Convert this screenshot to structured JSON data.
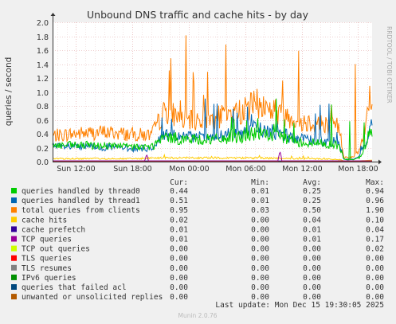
{
  "chart_data": {
    "type": "line",
    "title": "Unbound DNS traffic and cache hits - by day",
    "ylabel": "queries / second",
    "watermark": "RRDTOOL / TOBI OETIKER",
    "ylim": [
      0,
      2.0
    ],
    "yticks": [
      "0.0",
      "0.2",
      "0.4",
      "0.6",
      "0.8",
      "1.0",
      "1.2",
      "1.4",
      "1.6",
      "1.8",
      "2.0"
    ],
    "xticks": [
      "Sun 12:00",
      "Sun 18:00",
      "Mon 00:00",
      "Mon 06:00",
      "Mon 12:00",
      "Mon 18:00"
    ],
    "x_tick_hours": [
      12,
      18,
      24,
      30,
      36,
      42
    ],
    "x_range_hours": [
      9.5,
      43.5
    ],
    "grid": true,
    "legend_position": "bottom",
    "legend_headers": {
      "cur": "Cur:",
      "min": "Min:",
      "avg": "Avg:",
      "max": "Max:"
    },
    "series": [
      {
        "name": "queries handled by thread0",
        "color": "#00cc00",
        "cur": "0.44",
        "min": "0.01",
        "avg": "0.25",
        "max": "0.94",
        "keypoints": [
          [
            9.5,
            0.22
          ],
          [
            12,
            0.22
          ],
          [
            15,
            0.22
          ],
          [
            18,
            0.2
          ],
          [
            20,
            0.2
          ],
          [
            21.5,
            0.33
          ],
          [
            24,
            0.3
          ],
          [
            27,
            0.3
          ],
          [
            30,
            0.35
          ],
          [
            31,
            0.38
          ],
          [
            33,
            0.35
          ],
          [
            36,
            0.26
          ],
          [
            38,
            0.25
          ],
          [
            40,
            0.22
          ],
          [
            40.5,
            0.03
          ],
          [
            41.5,
            0.03
          ],
          [
            42.2,
            0.06
          ],
          [
            42.8,
            0.2
          ],
          [
            43.3,
            0.44
          ],
          [
            43.5,
            0.44
          ]
        ]
      },
      {
        "name": "queries handled by thread1",
        "color": "#0066b3",
        "cur": "0.51",
        "min": "0.01",
        "avg": "0.25",
        "max": "0.96",
        "keypoints": [
          [
            9.5,
            0.2
          ],
          [
            12,
            0.2
          ],
          [
            15,
            0.2
          ],
          [
            18,
            0.18
          ],
          [
            20,
            0.18
          ],
          [
            21.5,
            0.38
          ],
          [
            24,
            0.33
          ],
          [
            27,
            0.33
          ],
          [
            30,
            0.42
          ],
          [
            31,
            0.45
          ],
          [
            33,
            0.4
          ],
          [
            36,
            0.3
          ],
          [
            38,
            0.28
          ],
          [
            40,
            0.26
          ],
          [
            40.5,
            0.03
          ],
          [
            41.5,
            0.03
          ],
          [
            42.2,
            0.08
          ],
          [
            42.8,
            0.25
          ],
          [
            43.3,
            0.51
          ],
          [
            43.5,
            0.51
          ]
        ]
      },
      {
        "name": "total queries from clients",
        "color": "#ff8000",
        "cur": "0.95",
        "min": "0.03",
        "avg": "0.50",
        "max": "1.90",
        "keypoints": [
          [
            9.5,
            0.35
          ],
          [
            12,
            0.38
          ],
          [
            15,
            0.4
          ],
          [
            18,
            0.37
          ],
          [
            20,
            0.36
          ],
          [
            21.5,
            0.7
          ],
          [
            24,
            0.55
          ],
          [
            27,
            0.6
          ],
          [
            30,
            0.7
          ],
          [
            31,
            0.8
          ],
          [
            33,
            0.7
          ],
          [
            36,
            0.55
          ],
          [
            38,
            0.52
          ],
          [
            40,
            0.48
          ],
          [
            40.5,
            0.06
          ],
          [
            41.5,
            0.06
          ],
          [
            42.2,
            0.15
          ],
          [
            42.8,
            0.5
          ],
          [
            43.3,
            0.95
          ],
          [
            43.5,
            0.95
          ]
        ]
      },
      {
        "name": "cache hits",
        "color": "#ffcc00",
        "cur": "0.02",
        "min": "0.00",
        "avg": "0.04",
        "max": "0.10",
        "keypoints": [
          [
            9.5,
            0.04
          ],
          [
            18,
            0.04
          ],
          [
            21.5,
            0.05
          ],
          [
            30,
            0.05
          ],
          [
            36,
            0.04
          ],
          [
            40,
            0.03
          ],
          [
            40.5,
            0.01
          ],
          [
            42,
            0.01
          ],
          [
            43.5,
            0.02
          ]
        ]
      },
      {
        "name": "cache prefetch",
        "color": "#330099",
        "cur": "0.01",
        "min": "0.00",
        "avg": "0.01",
        "max": "0.04",
        "keypoints": [
          [
            9.5,
            0.01
          ],
          [
            43.5,
            0.01
          ]
        ]
      },
      {
        "name": "TCP queries",
        "color": "#990099",
        "cur": "0.01",
        "min": "0.00",
        "avg": "0.01",
        "max": "0.17",
        "keypoints": [
          [
            9.5,
            0.01
          ],
          [
            19.3,
            0.01
          ],
          [
            19.5,
            0.12
          ],
          [
            19.7,
            0.01
          ],
          [
            33.5,
            0.01
          ],
          [
            33.7,
            0.17
          ],
          [
            33.9,
            0.01
          ],
          [
            43.5,
            0.01
          ]
        ]
      },
      {
        "name": "TCP out queries",
        "color": "#ccff00",
        "cur": "0.00",
        "min": "0.00",
        "avg": "0.00",
        "max": "0.02",
        "keypoints": [
          [
            9.5,
            0.0
          ],
          [
            43.5,
            0.0
          ]
        ]
      },
      {
        "name": "TLS queries",
        "color": "#ff0000",
        "cur": "0.00",
        "min": "0.00",
        "avg": "0.00",
        "max": "0.00",
        "keypoints": [
          [
            9.5,
            0.0
          ],
          [
            43.5,
            0.0
          ]
        ]
      },
      {
        "name": "TLS resumes",
        "color": "#808080",
        "cur": "0.00",
        "min": "0.00",
        "avg": "0.00",
        "max": "0.00",
        "keypoints": [
          [
            9.5,
            0.0
          ],
          [
            43.5,
            0.0
          ]
        ]
      },
      {
        "name": "IPv6 queries",
        "color": "#008f00",
        "cur": "0.00",
        "min": "0.00",
        "avg": "0.00",
        "max": "0.00",
        "keypoints": [
          [
            9.5,
            0.0
          ],
          [
            43.5,
            0.0
          ]
        ]
      },
      {
        "name": "queries that failed acl",
        "color": "#00487d",
        "cur": "0.00",
        "min": "0.00",
        "avg": "0.00",
        "max": "0.00",
        "keypoints": [
          [
            9.5,
            0.0
          ],
          [
            43.5,
            0.0
          ]
        ]
      },
      {
        "name": "unwanted or unsolicited replies",
        "color": "#b35a00",
        "cur": "0.00",
        "min": "0.00",
        "avg": "0.00",
        "max": "0.00",
        "keypoints": [
          [
            9.5,
            0.0
          ],
          [
            43.5,
            0.0
          ]
        ]
      }
    ],
    "last_update": "Last update: Mon Dec 15 19:30:05 2025",
    "footer": "Munin 2.0.76"
  }
}
